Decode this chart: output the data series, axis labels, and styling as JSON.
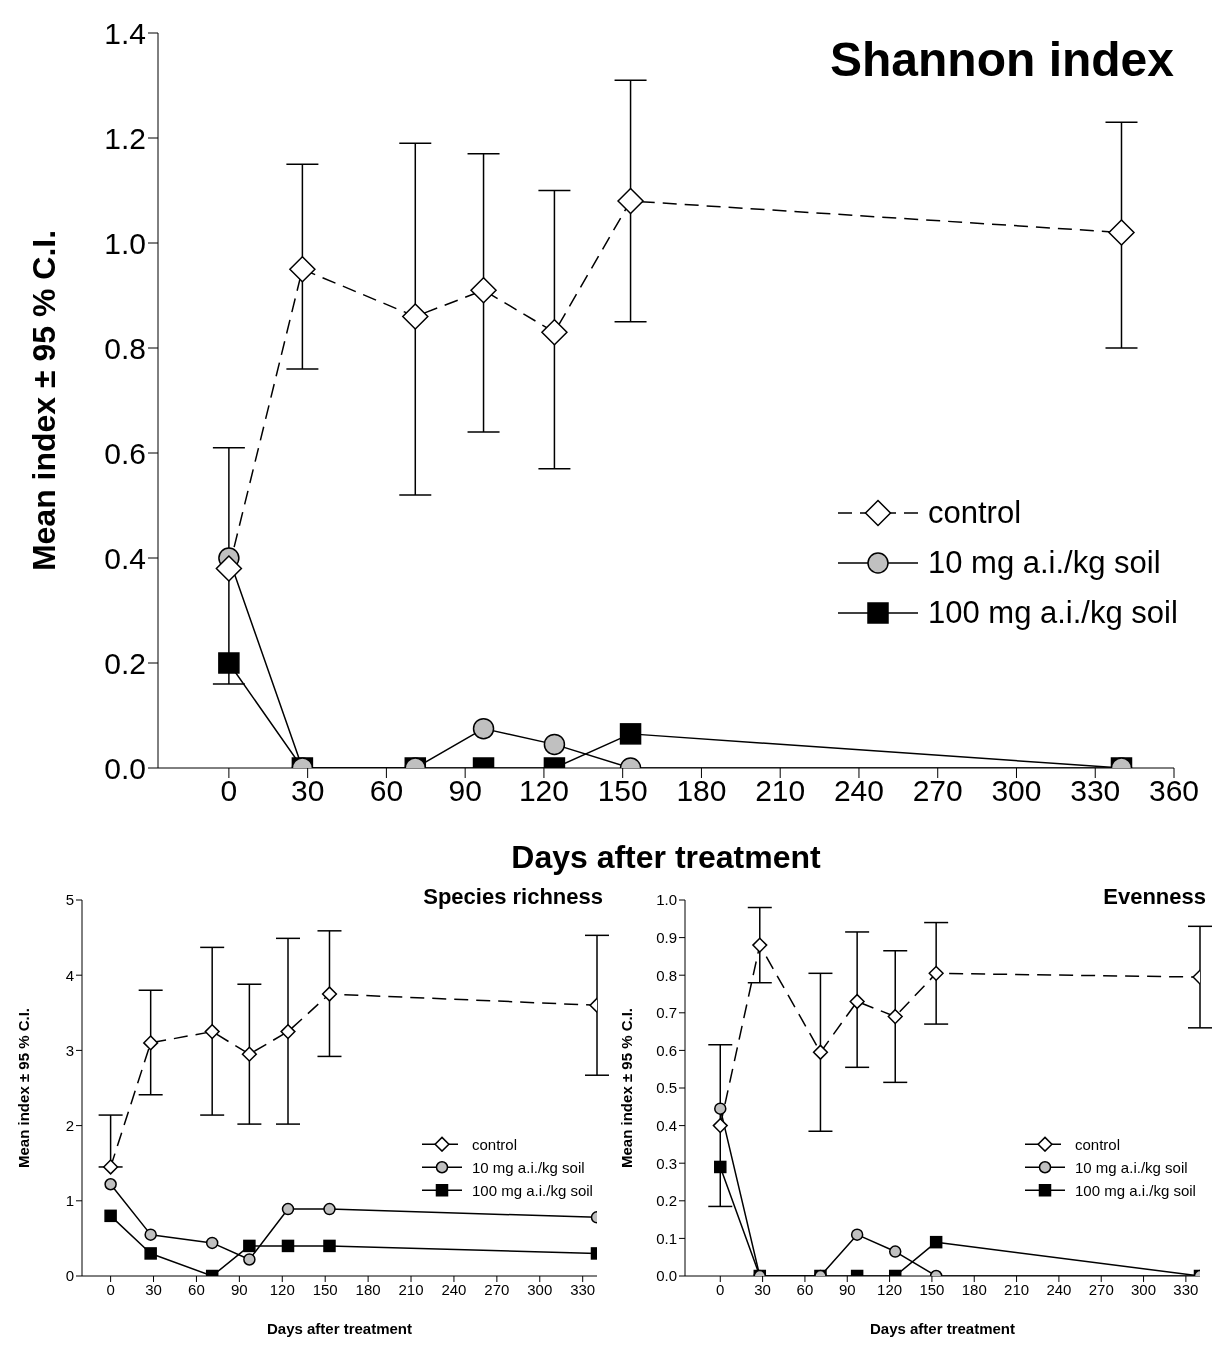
{
  "chart_data": [
    {
      "type": "line",
      "title": "Shannon index",
      "xlabel": "Days after treatment",
      "ylabel": "Mean index ± 95 % C.I.",
      "x": [
        0,
        28,
        71,
        97,
        124,
        153,
        340
      ],
      "xlim": [
        -27,
        360
      ],
      "xticks": [
        0,
        30,
        60,
        90,
        120,
        150,
        180,
        210,
        240,
        270,
        300,
        330,
        360
      ],
      "ylim": [
        0,
        1.4
      ],
      "yticks": [
        {
          "value": 0,
          "label": "0.0"
        },
        {
          "value": 0.2,
          "label": "0.2"
        },
        {
          "value": 0.4,
          "label": "0.4"
        },
        {
          "value": 0.6,
          "label": "0.6"
        },
        {
          "value": 0.8,
          "label": "0.8"
        },
        {
          "value": 1,
          "label": "1.0"
        },
        {
          "value": 1.2,
          "label": "1.2"
        },
        {
          "value": 1.4,
          "label": "1.4"
        }
      ],
      "legend": "right",
      "series": [
        {
          "name": "control",
          "color": "#ffffff",
          "marker": "diamond",
          "line_style": "dashed",
          "values": [
            0.38,
            0.95,
            0.86,
            0.91,
            0.83,
            1.08,
            1.02
          ],
          "errors": [
            [
              0.16,
              0.61
            ],
            [
              0.76,
              1.15
            ],
            [
              0.52,
              1.19
            ],
            [
              0.64,
              1.17
            ],
            [
              0.57,
              1.1
            ],
            [
              0.85,
              1.31
            ],
            [
              0.8,
              1.23
            ]
          ]
        },
        {
          "name": "10 mg a.i./kg soil",
          "color": "#c0c0c0",
          "marker": "circle",
          "line_style": "solid",
          "values": [
            0.4,
            0,
            0,
            0.075,
            0.045,
            0,
            0
          ]
        },
        {
          "name": "100 mg a.i./kg soil",
          "color": "#000000",
          "marker": "square",
          "line_style": "solid",
          "values": [
            0.2,
            0,
            0,
            0,
            0,
            0.065,
            0
          ]
        }
      ]
    },
    {
      "type": "line",
      "title": "Species richness",
      "xlabel": "Days after treatment",
      "ylabel": "Mean index ± 95 % C.I.",
      "x": [
        0,
        28,
        71,
        97,
        124,
        153,
        340
      ],
      "xlim": [
        -20,
        340
      ],
      "xticks": [
        0,
        30,
        60,
        90,
        120,
        150,
        180,
        210,
        240,
        270,
        300,
        330
      ],
      "ylim": [
        0,
        5
      ],
      "yticks": [
        0,
        1,
        2,
        3,
        4,
        5
      ],
      "legend": "right",
      "series": [
        {
          "name": "control",
          "color": "#ffffff",
          "marker": "diamond",
          "line_style": "dashed",
          "values": [
            1.45,
            3.1,
            3.25,
            2.95,
            3.25,
            3.75,
            3.6
          ],
          "errors": [
            [
              1.45,
              2.14
            ],
            [
              2.41,
              3.8
            ],
            [
              2.14,
              4.37
            ],
            [
              2.02,
              3.88
            ],
            [
              2.02,
              4.49
            ],
            [
              2.92,
              4.59
            ],
            [
              2.67,
              4.53
            ]
          ]
        },
        {
          "name": "10 mg a.i./kg soil",
          "color": "#c0c0c0",
          "marker": "circle",
          "line_style": "solid",
          "values": [
            1.22,
            0.55,
            0.44,
            0.22,
            0.89,
            0.89,
            0.78
          ]
        },
        {
          "name": "100 mg a.i./kg soil",
          "color": "#000000",
          "marker": "square",
          "line_style": "solid",
          "values": [
            0.8,
            0.3,
            0,
            0.4,
            0.4,
            0.4,
            0.3
          ]
        }
      ]
    },
    {
      "type": "line",
      "title": "Evenness",
      "xlabel": "Days after treatment",
      "ylabel": "Mean index ± 95 % C.I.",
      "x": [
        0,
        28,
        71,
        97,
        124,
        153,
        340
      ],
      "xlim": [
        -25,
        340
      ],
      "xticks": [
        0,
        30,
        60,
        90,
        120,
        150,
        180,
        210,
        240,
        270,
        300,
        330
      ],
      "ylim": [
        0,
        1
      ],
      "yticks": [
        {
          "value": 0,
          "label": "0.0"
        },
        0.1,
        0.2,
        0.3,
        0.4,
        0.5,
        0.6,
        0.7,
        0.8,
        0.9,
        {
          "value": 1,
          "label": "1.0"
        }
      ],
      "legend": "right",
      "series": [
        {
          "name": "control",
          "color": "#ffffff",
          "marker": "diamond",
          "line_style": "dashed",
          "values": [
            0.4,
            0.88,
            0.595,
            0.73,
            0.69,
            0.805,
            0.795
          ],
          "errors": [
            [
              0.185,
              0.615
            ],
            [
              0.78,
              0.98
            ],
            [
              0.385,
              0.805
            ],
            [
              0.555,
              0.915
            ],
            [
              0.515,
              0.865
            ],
            [
              0.67,
              0.94
            ],
            [
              0.66,
              0.93
            ]
          ]
        },
        {
          "name": "10 mg a.i./kg soil",
          "color": "#c0c0c0",
          "marker": "circle",
          "line_style": "solid",
          "values": [
            0.445,
            0,
            0,
            0.11,
            0.065,
            0,
            0
          ]
        },
        {
          "name": "100 mg a.i./kg soil",
          "color": "#000000",
          "marker": "square",
          "line_style": "solid",
          "values": [
            0.29,
            0,
            0,
            0,
            0,
            0.09,
            0
          ]
        }
      ]
    }
  ]
}
